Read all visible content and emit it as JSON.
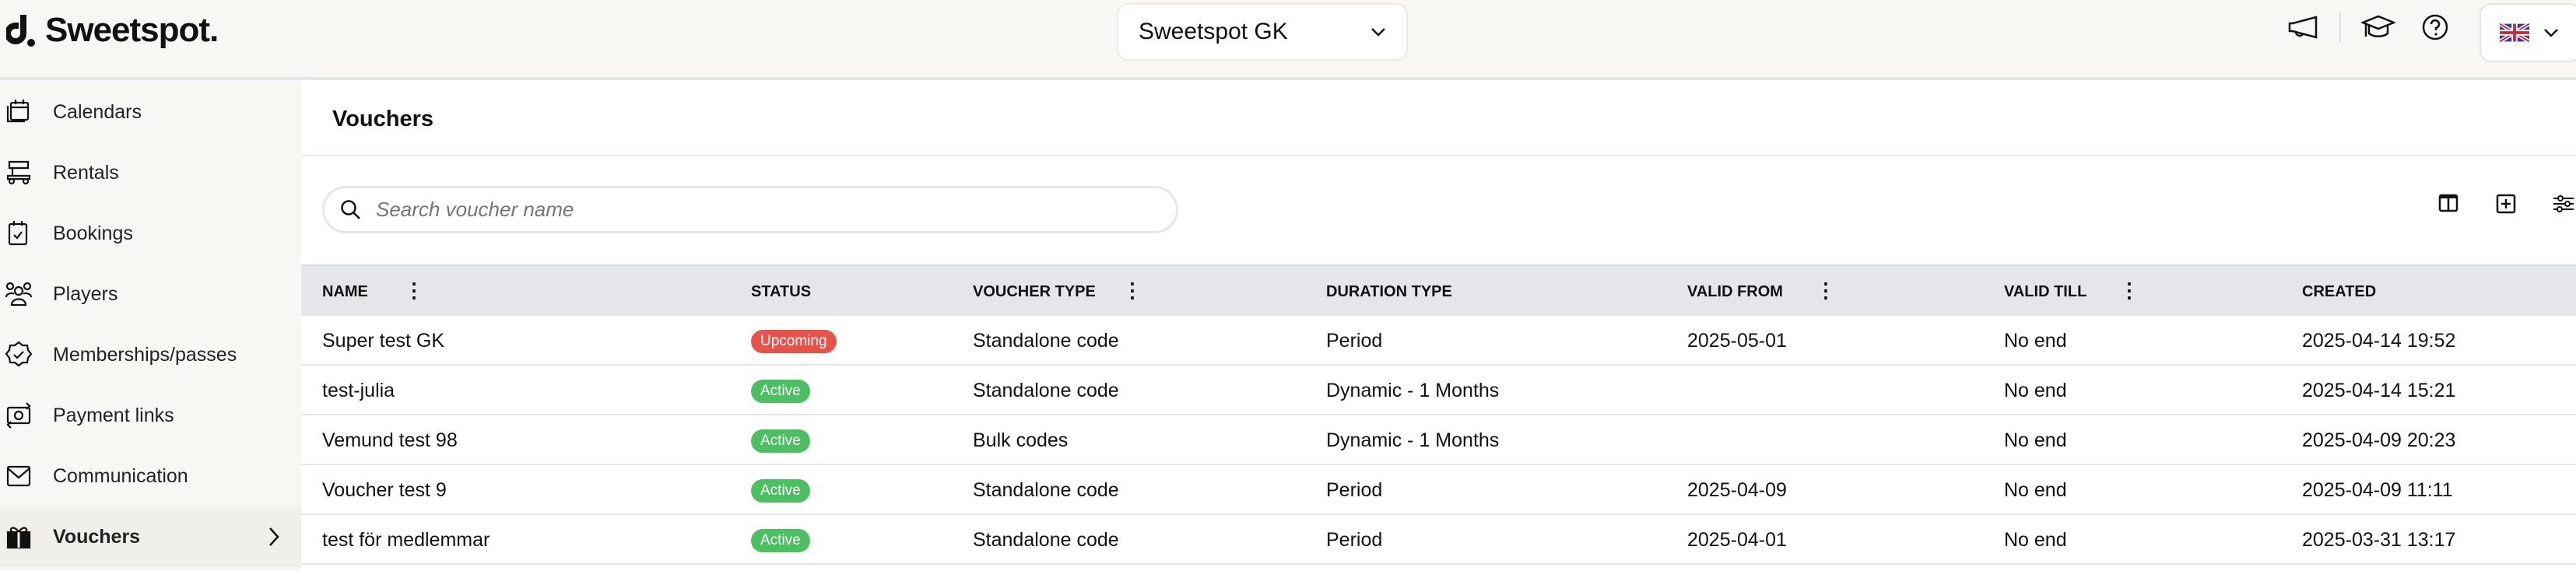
{
  "app": {
    "brand": "Sweetspot.",
    "club": "Sweetspot GK",
    "colors": {
      "upcoming": "#e5534b",
      "active": "#4cbf63"
    }
  },
  "sidebar": {
    "items": [
      {
        "label": "Calendars",
        "icon": "calendar-icon"
      },
      {
        "label": "Rentals",
        "icon": "golf-cart-icon"
      },
      {
        "label": "Bookings",
        "icon": "booking-icon"
      },
      {
        "label": "Players",
        "icon": "players-icon"
      },
      {
        "label": "Memberships/passes",
        "icon": "badge-check-icon"
      },
      {
        "label": "Payment links",
        "icon": "money-icon"
      },
      {
        "label": "Communication",
        "icon": "mail-icon"
      },
      {
        "label": "Vouchers",
        "icon": "gift-icon",
        "active": true
      }
    ]
  },
  "page": {
    "title": "Vouchers",
    "search_placeholder": "Search voucher name"
  },
  "table": {
    "columns": [
      "Name",
      "Status",
      "Voucher type",
      "Duration type",
      "Valid from",
      "Valid till",
      "Created"
    ],
    "rows": [
      {
        "name": "Super test GK",
        "status": "Upcoming",
        "type": "Standalone code",
        "duration": "Period",
        "from": "2025-05-01",
        "till": "No end",
        "created": "2025-04-14 19:52"
      },
      {
        "name": "test-julia",
        "status": "Active",
        "type": "Standalone code",
        "duration": "Dynamic - 1 Months",
        "from": "",
        "till": "No end",
        "created": "2025-04-14 15:21"
      },
      {
        "name": "Vemund test 98",
        "status": "Active",
        "type": "Bulk codes",
        "duration": "Dynamic - 1 Months",
        "from": "",
        "till": "No end",
        "created": "2025-04-09 20:23"
      },
      {
        "name": "Voucher test 9",
        "status": "Active",
        "type": "Standalone code",
        "duration": "Period",
        "from": "2025-04-09",
        "till": "No end",
        "created": "2025-04-09 11:11"
      },
      {
        "name": "test för medlemmar",
        "status": "Active",
        "type": "Standalone code",
        "duration": "Period",
        "from": "2025-04-01",
        "till": "No end",
        "created": "2025-03-31 13:17"
      }
    ]
  }
}
